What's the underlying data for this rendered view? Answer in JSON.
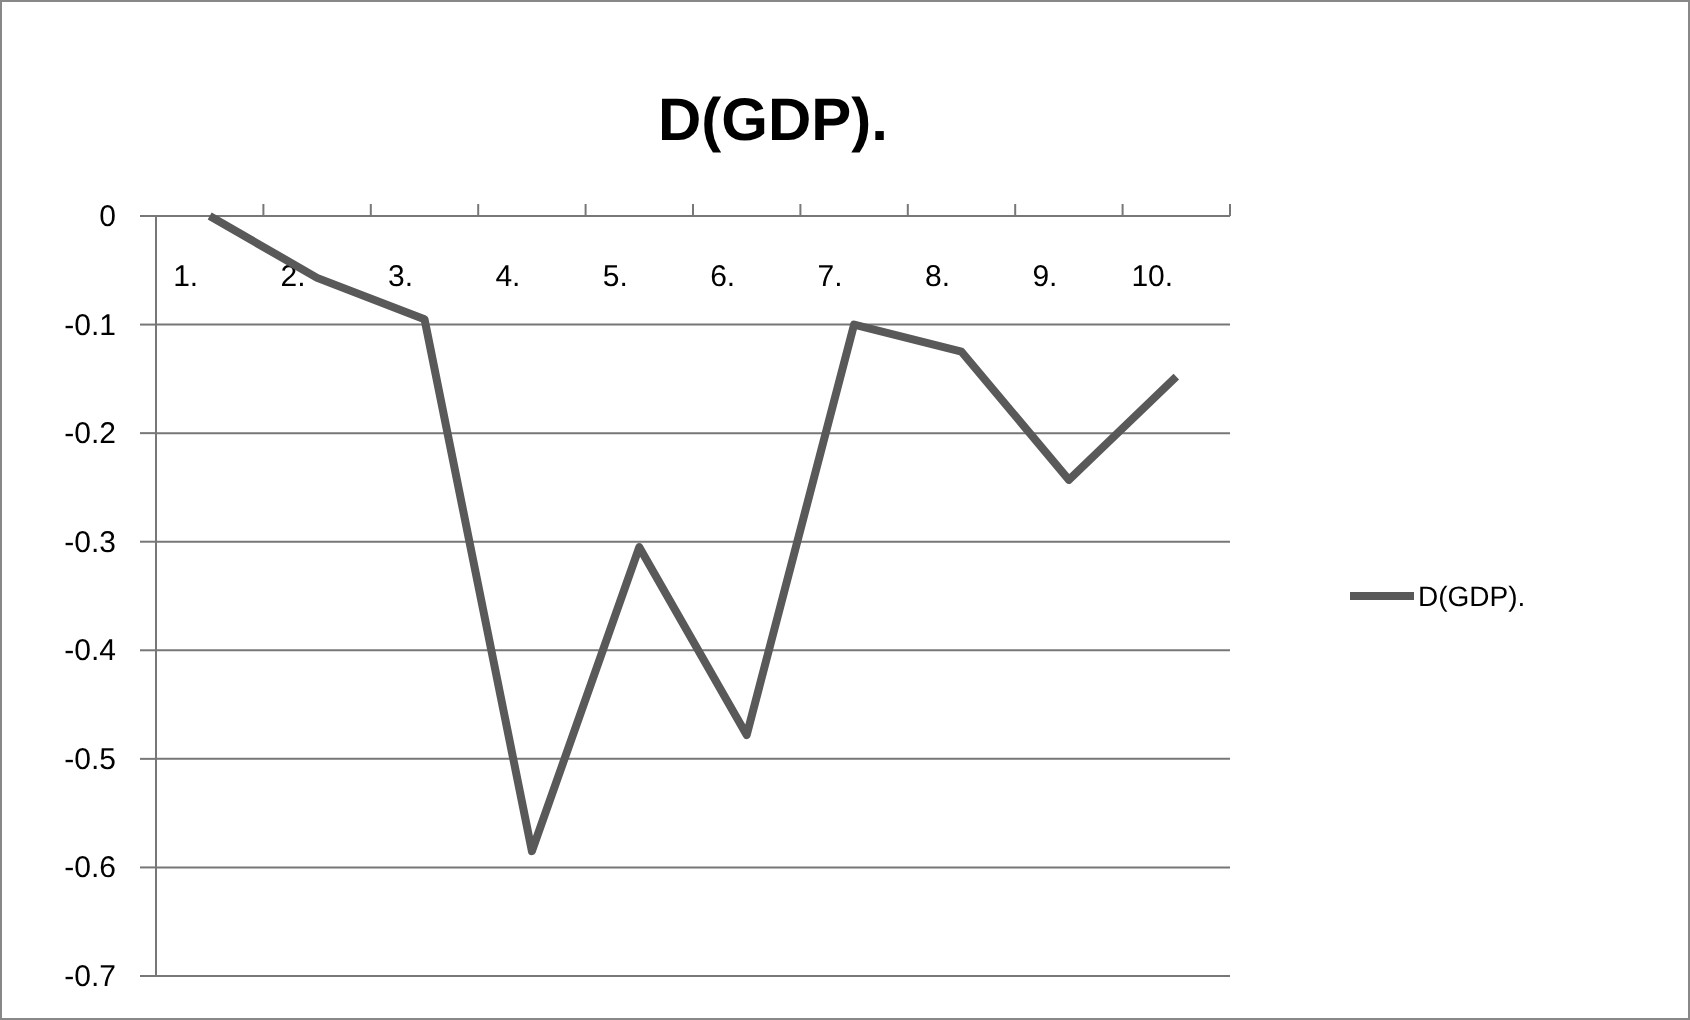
{
  "chart_data": {
    "type": "line",
    "title": "D(GDP).",
    "categories": [
      "1.",
      "2.",
      "3.",
      "4.",
      "5.",
      "6.",
      "7.",
      "8.",
      "9.",
      "10."
    ],
    "series": [
      {
        "name": "D(GDP).",
        "color": "#595959",
        "values": [
          0,
          -0.057,
          -0.095,
          -0.585,
          -0.305,
          -0.478,
          -0.1,
          -0.125,
          -0.243,
          -0.148
        ]
      }
    ],
    "ylim": [
      -0.7,
      0
    ],
    "yticks": [
      0,
      -0.1,
      -0.2,
      -0.3,
      -0.4,
      -0.5,
      -0.6,
      -0.7
    ],
    "grid": "y",
    "legend": "right",
    "marker": "none",
    "line_style": "solid"
  }
}
